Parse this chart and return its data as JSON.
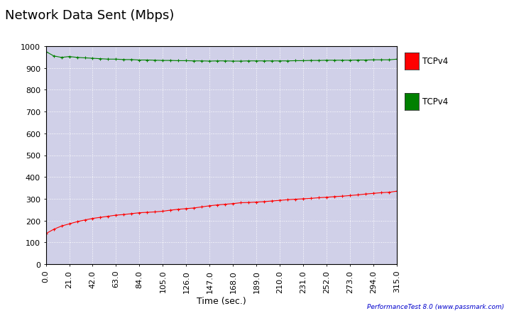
{
  "title": "Network Data Sent (Mbps)",
  "xlabel": "Time (sec.)",
  "ylabel": "",
  "xlim": [
    0,
    315
  ],
  "ylim": [
    0,
    1000
  ],
  "xticks": [
    0.0,
    21.0,
    42.0,
    63.0,
    84.0,
    105.0,
    126.0,
    147.0,
    168.0,
    189.0,
    210.0,
    231.0,
    252.0,
    273.0,
    294.0,
    315.0
  ],
  "yticks": [
    0,
    100,
    200,
    300,
    400,
    500,
    600,
    700,
    800,
    900,
    1000
  ],
  "background_color": "#d0d0e8",
  "outer_bg_color": "#ffffff",
  "grid_color": "#ffffff",
  "red_color": "#ff0000",
  "green_color": "#008000",
  "title_fontsize": 13,
  "axis_fontsize": 8,
  "tick_label_color": "#ff8c00",
  "watermark": "PerformanceTest 8.0 (www.passmark.com)",
  "watermark_color": "#0000cc",
  "legend_labels": [
    "TCPv4",
    "TCPv4"
  ],
  "red_x": [
    0,
    7,
    14,
    21,
    28,
    35,
    42,
    49,
    56,
    63,
    70,
    77,
    84,
    91,
    98,
    105,
    112,
    119,
    126,
    133,
    140,
    147,
    154,
    161,
    168,
    175,
    182,
    189,
    196,
    203,
    210,
    217,
    224,
    231,
    238,
    245,
    252,
    259,
    266,
    273,
    280,
    287,
    294,
    301,
    308,
    315
  ],
  "red_y": [
    140,
    160,
    175,
    185,
    195,
    203,
    210,
    215,
    220,
    225,
    228,
    232,
    236,
    238,
    240,
    243,
    248,
    252,
    255,
    258,
    263,
    268,
    272,
    275,
    278,
    282,
    283,
    285,
    287,
    290,
    293,
    296,
    298,
    300,
    302,
    305,
    307,
    310,
    312,
    315,
    318,
    322,
    325,
    328,
    330,
    335
  ],
  "green_x": [
    0,
    7,
    14,
    21,
    28,
    35,
    42,
    49,
    56,
    63,
    70,
    77,
    84,
    91,
    98,
    105,
    112,
    119,
    126,
    133,
    140,
    147,
    154,
    161,
    168,
    175,
    182,
    189,
    196,
    203,
    210,
    217,
    224,
    231,
    238,
    245,
    252,
    259,
    266,
    273,
    280,
    287,
    294,
    301,
    308,
    315
  ],
  "green_y": [
    975,
    955,
    948,
    952,
    948,
    946,
    944,
    942,
    940,
    940,
    938,
    938,
    936,
    936,
    935,
    934,
    934,
    933,
    933,
    932,
    932,
    931,
    932,
    932,
    931,
    931,
    932,
    932,
    932,
    932,
    932,
    932,
    933,
    933,
    934,
    934,
    935,
    935,
    935,
    935,
    936,
    936,
    937,
    937,
    937,
    940
  ]
}
